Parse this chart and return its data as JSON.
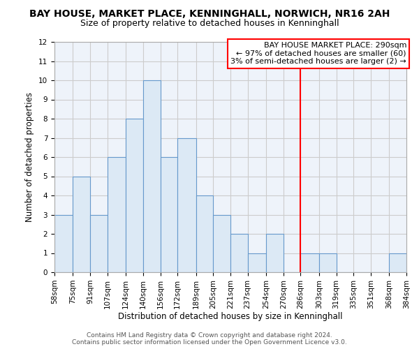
{
  "title": "BAY HOUSE, MARKET PLACE, KENNINGHALL, NORWICH, NR16 2AH",
  "subtitle": "Size of property relative to detached houses in Kenninghall",
  "xlabel": "Distribution of detached houses by size in Kenninghall",
  "ylabel": "Number of detached properties",
  "bin_edges": [
    58,
    75,
    91,
    107,
    124,
    140,
    156,
    172,
    189,
    205,
    221,
    237,
    254,
    270,
    286,
    303,
    319,
    335,
    351,
    368,
    384
  ],
  "bar_heights": [
    3,
    5,
    3,
    6,
    8,
    10,
    6,
    7,
    4,
    3,
    2,
    1,
    2,
    0,
    1,
    1,
    0,
    0,
    0,
    1
  ],
  "bar_facecolor": "#dce9f5",
  "bar_edgecolor": "#6699cc",
  "vline_x": 286,
  "vline_color": "red",
  "ylim": [
    0,
    12
  ],
  "yticks": [
    0,
    1,
    2,
    3,
    4,
    5,
    6,
    7,
    8,
    9,
    10,
    11,
    12
  ],
  "annotation_title": "BAY HOUSE MARKET PLACE: 290sqm",
  "annotation_line1": "← 97% of detached houses are smaller (60)",
  "annotation_line2": "3% of semi-detached houses are larger (2) →",
  "footer_line1": "Contains HM Land Registry data © Crown copyright and database right 2024.",
  "footer_line2": "Contains public sector information licensed under the Open Government Licence v3.0.",
  "title_fontsize": 10,
  "subtitle_fontsize": 9,
  "axis_label_fontsize": 8.5,
  "tick_fontsize": 7.5,
  "annotation_fontsize": 8,
  "footer_fontsize": 6.5,
  "grid_color": "#cccccc",
  "plot_bg_color": "#eef3fa",
  "fig_bg_color": "#ffffff"
}
